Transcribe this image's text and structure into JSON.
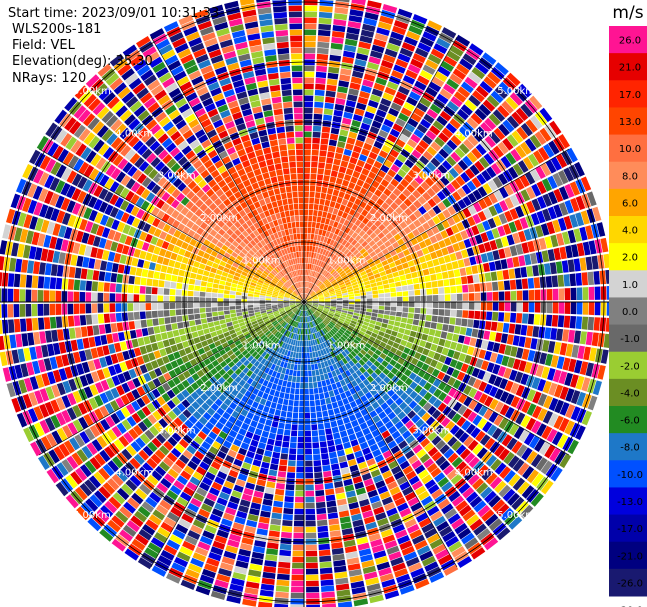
{
  "header": {
    "start_time": "Start time: 2023/09/01 10:31:33",
    "instrument": "WLS200s-181",
    "field": "Field: VEL",
    "elevation": "Elevation(deg): 35.30",
    "nrays": "NRays: 120"
  },
  "chart_data": {
    "type": "heatmap",
    "projection": "polar-ppi",
    "field": "VEL",
    "units": "m/s",
    "nrays": 120,
    "range_rings_km": [
      1,
      2,
      3,
      4,
      5
    ],
    "ring_labels": [
      "1.00km",
      "2.00km",
      "3.00km",
      "4.00km",
      "5.00km"
    ],
    "max_range_km": 5.1,
    "valid_data_range_km": 2.7,
    "velocity_pattern": {
      "positive_max_azimuth_deg": 0,
      "negative_max_azimuth_deg": 180,
      "zero_line_azimuth_deg": [
        90,
        270
      ],
      "amplitude_ms": 14
    },
    "colorbar": {
      "label": "m/s",
      "ticks": [
        "26.0",
        "21.0",
        "17.0",
        "13.0",
        "10.0",
        "8.0",
        "6.0",
        "4.0",
        "2.0",
        "1.0",
        "0.0",
        "-1.0",
        "-2.0",
        "-4.0",
        "-6.0",
        "-8.0",
        "-10.0",
        "-13.0",
        "-17.0",
        "-21.0",
        "-26.0",
        "-30.0"
      ],
      "bins": [
        {
          "min": 21,
          "max": 26,
          "color": "#ff1493"
        },
        {
          "min": 17,
          "max": 21,
          "color": "#e60000"
        },
        {
          "min": 13,
          "max": 17,
          "color": "#ff2400"
        },
        {
          "min": 10,
          "max": 13,
          "color": "#ff4500"
        },
        {
          "min": 8,
          "max": 10,
          "color": "#ff6f40"
        },
        {
          "min": 6,
          "max": 8,
          "color": "#ff8c5a"
        },
        {
          "min": 4,
          "max": 6,
          "color": "#ffa500"
        },
        {
          "min": 2,
          "max": 4,
          "color": "#ffd700"
        },
        {
          "min": 1,
          "max": 2,
          "color": "#ffff00"
        },
        {
          "min": 0,
          "max": 1,
          "color": "#d3d3d3"
        },
        {
          "min": -1,
          "max": 0,
          "color": "#808080"
        },
        {
          "min": -2,
          "max": -1,
          "color": "#696969"
        },
        {
          "min": -4,
          "max": -2,
          "color": "#9acd32"
        },
        {
          "min": -6,
          "max": -4,
          "color": "#6b8e23"
        },
        {
          "min": -8,
          "max": -6,
          "color": "#228b22"
        },
        {
          "min": -10,
          "max": -8,
          "color": "#1e78c8"
        },
        {
          "min": -13,
          "max": -10,
          "color": "#0050ff"
        },
        {
          "min": -17,
          "max": -13,
          "color": "#0000dd"
        },
        {
          "min": -21,
          "max": -17,
          "color": "#0000aa"
        },
        {
          "min": -26,
          "max": -21,
          "color": "#000080"
        },
        {
          "min": -30,
          "max": -26,
          "color": "#191970"
        }
      ],
      "top_color": "#ff1493"
    }
  }
}
